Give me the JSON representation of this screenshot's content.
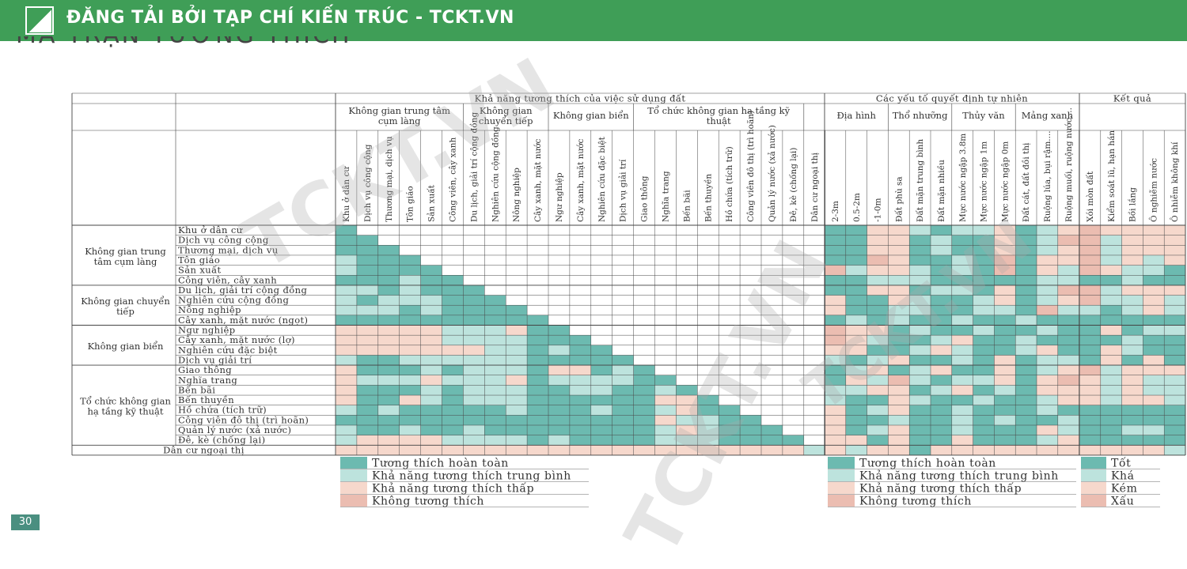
{
  "banner": {
    "title": "ĐĂNG TẢI BỞI TẠP CHÍ KIẾN TRÚC - TCKT.VN"
  },
  "ghost_heading": "MA TRẬN TƯƠNG THÍCH",
  "watermark": "TCKT.VN",
  "page_number": "30",
  "colors": {
    "banner": "#3f9e57",
    "full": "#6cbab0",
    "medium": "#bde3dd",
    "low": "#f6d8cc",
    "none": "#ebbdb1",
    "grid": "#444444"
  },
  "headers": {
    "land_use": "Khả năng tương thích của việc sử dụng đất",
    "natural": "Các yếu tố quyết định tự nhiên",
    "result": "Kết quả"
  },
  "subgroups": [
    "Không gian trung tâm cụm làng",
    "Không gian chuyển tiếp",
    "Không gian biển",
    "Tổ chức không gian hạ tầng kỹ thuật",
    "Địa hình",
    "Thổ nhưỡng",
    "Thủy văn",
    "Mảng xanh"
  ],
  "row_groups": [
    "Không gian trung tâm cụm làng",
    "Không gian chuyển tiếp",
    "Không gian biển",
    "Tổ chức không gian hạ tầng kỹ thuật"
  ],
  "row_items": [
    "Khu ở dân cư",
    "Dịch vụ công cộng",
    "Thương mại, dịch vụ",
    "Tôn giáo",
    "Sản xuất",
    "Công viên, cây xanh",
    "Du lịch, giải trí cộng đồng",
    "Nghiên cứu cộng đồng",
    "Nông nghiệp",
    "Cây xanh, mặt nước (ngọt)",
    "Ngư nghiệp",
    "Cây xanh, mặt nước (lợ)",
    "Nghiên cứu đặc biệt",
    "Dịch vụ giải trí",
    "Giao thông",
    "Nghĩa trang",
    "Bến bãi",
    "Bến thuyền",
    "Hồ chứa (tích trữ)",
    "Công viên đô thị (trì hoãn)",
    "Quản lý nước (xả nước)",
    "Đê, kè (chống lại)"
  ],
  "last_row": "Dân cư ngoại thị",
  "land_columns": [
    "Khu ở dân cư",
    "Dịch vụ công cộng",
    "Thương mại, dịch vụ",
    "Tôn giáo",
    "Sản xuất",
    "Công viên, cây xanh",
    "Du lịch, giải trí cộng đồng",
    "Nghiên cứu cộng đồng",
    "Nông nghiệp",
    "Cây xanh, mặt nước",
    "Ngư nghiệp",
    "Cây xanh, mặt nước",
    "Nghiên cứu đặc biệt",
    "Dịch vụ giải trí",
    "Giao thông",
    "Nghĩa trang",
    "Bến bãi",
    "Bến thuyền",
    "Hồ chứa (tích trữ)",
    "Công viên đô thị (trì hoãn)",
    "Quản lý nước (xả nước)",
    "Đê, kè (chống lại)",
    "Dân cư ngoại thị"
  ],
  "natural_columns": [
    "2-3m",
    "0.5-2m",
    "-1-0m",
    "Đất phù sa",
    "Đất mặn trung bình",
    "Đất mặn nhiều",
    "Mực nước ngập 3.8m",
    "Mực nước ngập 1m",
    "Mực nước ngập 0m",
    "Đất cát, đất đồi thị",
    "Ruộng lúa, bụi rậm....",
    "Ruộng muối, ruộng nước...."
  ],
  "result_columns": [
    "Xói mòn đất",
    "Kiểm soát lũ, hạn hán",
    "Bồi lắng",
    "Ô nghiễm nước",
    "Ô nhiễm không khí"
  ],
  "legend_left": [
    "Tương thích hoàn toàn",
    "Khả năng tương thích trung bình",
    "Khả năng tương thích thấp",
    "Không tương thích"
  ],
  "legend_mid": [
    "Tương thích hoàn toàn",
    "Khả năng tương thích trung bình",
    "Khả năng tương thích thấp",
    "Không tương thích"
  ],
  "legend_right": [
    "Tốt",
    "Khá",
    "Kém",
    "Xấu"
  ],
  "matrix": [
    {
      "land": "F",
      "natural": "FFLLMFMMLFML",
      "result": "NLLLL"
    },
    {
      "land": "FF",
      "natural": "FFLLFMFFLFMN",
      "result": "NMLLL"
    },
    {
      "land": "FFF",
      "natural": "FFLLFMFFLFML",
      "result": "NMLLL"
    },
    {
      "land": "MFFF",
      "natural": "FFNLFFMFNFLL",
      "result": "NMLML"
    },
    {
      "land": "MFFFF",
      "natural": "NMLLMFMFNFLM",
      "result": "NLMMF"
    },
    {
      "land": "FFFMFF",
      "natural": "FFMMMFFFFFMM",
      "result": "FFMFF"
    },
    {
      "land": "MMFMFFF",
      "natural": "FFLLFMMFLFMN",
      "result": "NMLLL"
    },
    {
      "land": "MFMMMFFF",
      "natural": "LFFLMFFMLFML",
      "result": "NMMLM"
    },
    {
      "land": "MMMFMFFFF",
      "natural": "LFFMMFFMMFNM",
      "result": "MFMLM"
    },
    {
      "land": "FFFFFFFFFF",
      "natural": "FMFMFFMFFMFF",
      "result": "FFFFF"
    },
    {
      "land": "LLLLLMMMLFF",
      "natural": "NLLFMFFMFFMF",
      "result": "FLFMM"
    },
    {
      "land": "LLLLLMMMMFFF",
      "natural": "NLMFFMLFFMFF",
      "result": "FFMFF"
    },
    {
      "land": "LLLLLLLMMFMFF",
      "natural": "LLFFMLMFFMLF",
      "result": "FLMFF"
    },
    {
      "land": "MFFMMMMMMFFFFF",
      "natural": "MFMLFFMFLFMM",
      "result": "FLFLF"
    },
    {
      "land": "LFFFMFMMMFLLFMF",
      "natural": "FMLFMLFFLFML",
      "result": "NMLLL"
    },
    {
      "land": "LMMMLMMMLFMMMMFF",
      "natural": "FLMNMFMMLFLN",
      "result": "LMLMM"
    },
    {
      "land": "LFFFMFMMMFFMMFFMF",
      "natural": "MMLLFMLFMFLL",
      "result": "LMLMM"
    },
    {
      "land": "LFFLMFMMMFFFFFFLLF",
      "natural": "MFFLMFFMFFML",
      "result": "LMLLM"
    },
    {
      "land": "MFMFFFFFMFFFMFFMLFF",
      "natural": "LFMLFFMFFFMF",
      "result": "FFFFF"
    },
    {
      "land": "FFFFFFFFFFFFFFFLMMFF",
      "natural": "LFFMFFMFMFFM",
      "result": "FFFFF"
    },
    {
      "land": "MFFMFFMFFFFFFFFMLMFFF",
      "natural": "LFMLFFMFFFLM",
      "result": "FFMMF"
    },
    {
      "land": "MLLLLMMMMFMFFFFMMMFFFF",
      "natural": "LLFLFFLFFFML",
      "result": "FFFFF"
    },
    {
      "land": "LLLLLLLLLLLLLLLLLLLLLLM",
      "natural": "LMLLFLLLLLLL",
      "result": "LLLLM"
    }
  ]
}
